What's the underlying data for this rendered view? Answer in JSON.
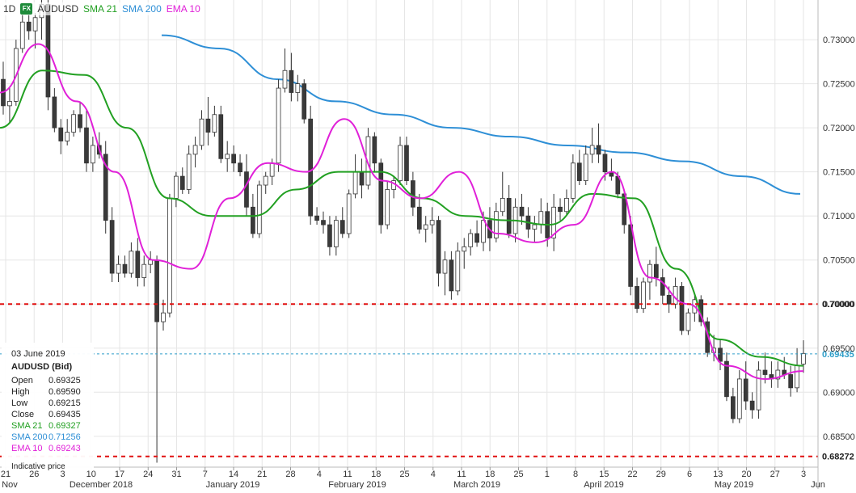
{
  "header": {
    "timeframe": "1D",
    "fx_badge": "FX",
    "symbol": "AUDUSD",
    "sma21_label": "SMA 21",
    "sma200_label": "SMA 200",
    "ema10_label": "EMA 10"
  },
  "colors": {
    "sma21": "#22a022",
    "sma200": "#2e8fd6",
    "ema10": "#e020d8",
    "candle_down": "#3a3a3a",
    "candle_up": "#ffffff",
    "level_line": "#e01010",
    "current_line": "#2e9ec9"
  },
  "info_panel": {
    "date": "03 June 2019",
    "instrument": "AUDUSD (Bid)",
    "rows": [
      {
        "label": "Open",
        "value": "0.69325"
      },
      {
        "label": "High",
        "value": "0.69590"
      },
      {
        "label": "Low",
        "value": "0.69215"
      },
      {
        "label": "Close",
        "value": "0.69435"
      },
      {
        "label": "SMA 21",
        "value": "0.69327"
      },
      {
        "label": "SMA 200",
        "value": "0.71256"
      },
      {
        "label": "EMA 10",
        "value": "0.69243"
      }
    ],
    "note": "Indicative price"
  },
  "chart_data": {
    "type": "candlestick",
    "timeframe": "1D",
    "instrument": "AUDUSD",
    "y_ticks": [
      "0.73000",
      "0.72500",
      "0.72000",
      "0.71500",
      "0.71000",
      "0.70500",
      "0.70000",
      "0.69500",
      "0.69000",
      "0.68500"
    ],
    "ylim": [
      0.6815,
      0.7345
    ],
    "x_tick_days": [
      "21",
      "26",
      "3",
      "10",
      "17",
      "24",
      "31",
      "7",
      "14",
      "21",
      "28",
      "4",
      "11",
      "18",
      "25",
      "4",
      "11",
      "18",
      "25",
      "1",
      "8",
      "15",
      "22",
      "29",
      "6",
      "13",
      "20",
      "27",
      "3"
    ],
    "x_month_labels": [
      "Nov",
      "December 2018",
      "January 2019",
      "February 2019",
      "March 2019",
      "April 2019",
      "May 2019",
      "Jun"
    ],
    "horizontal_levels": [
      {
        "value": 0.7,
        "label": "0.70000",
        "style": "dashed-red"
      },
      {
        "value": 0.68272,
        "label": "0.68272",
        "style": "dashed-red"
      }
    ],
    "current_price": {
      "value": 0.69435,
      "label": "0.69435"
    },
    "candles": [
      [
        0.7255,
        0.7275,
        0.7215,
        0.7225
      ],
      [
        0.7225,
        0.7245,
        0.7205,
        0.723
      ],
      [
        0.723,
        0.73,
        0.7225,
        0.729
      ],
      [
        0.729,
        0.734,
        0.7285,
        0.732
      ],
      [
        0.732,
        0.7335,
        0.73,
        0.731
      ],
      [
        0.731,
        0.733,
        0.729,
        0.7325
      ],
      [
        0.7325,
        0.735,
        0.73,
        0.734
      ],
      [
        0.734,
        0.7345,
        0.722,
        0.7235
      ],
      [
        0.7235,
        0.7245,
        0.7195,
        0.72
      ],
      [
        0.72,
        0.721,
        0.717,
        0.7185
      ],
      [
        0.7185,
        0.721,
        0.718,
        0.7195
      ],
      [
        0.7195,
        0.722,
        0.719,
        0.7215
      ],
      [
        0.7215,
        0.723,
        0.7195,
        0.72
      ],
      [
        0.72,
        0.722,
        0.715,
        0.716
      ],
      [
        0.716,
        0.719,
        0.715,
        0.718
      ],
      [
        0.718,
        0.7195,
        0.7165,
        0.717
      ],
      [
        0.717,
        0.7185,
        0.708,
        0.7095
      ],
      [
        0.7095,
        0.711,
        0.7025,
        0.7035
      ],
      [
        0.7035,
        0.7055,
        0.7025,
        0.7045
      ],
      [
        0.7045,
        0.7055,
        0.703,
        0.7035
      ],
      [
        0.7035,
        0.707,
        0.703,
        0.706
      ],
      [
        0.706,
        0.7075,
        0.702,
        0.703
      ],
      [
        0.703,
        0.7055,
        0.702,
        0.7045
      ],
      [
        0.7045,
        0.706,
        0.7035,
        0.705
      ],
      [
        0.705,
        0.7055,
        0.682,
        0.698
      ],
      [
        0.698,
        0.7005,
        0.697,
        0.699
      ],
      [
        0.699,
        0.7125,
        0.6985,
        0.712
      ],
      [
        0.712,
        0.715,
        0.711,
        0.7145
      ],
      [
        0.7145,
        0.7155,
        0.7125,
        0.713
      ],
      [
        0.713,
        0.718,
        0.7125,
        0.717
      ],
      [
        0.717,
        0.719,
        0.7155,
        0.718
      ],
      [
        0.718,
        0.722,
        0.7175,
        0.721
      ],
      [
        0.721,
        0.7235,
        0.718,
        0.7195
      ],
      [
        0.7195,
        0.7225,
        0.719,
        0.7215
      ],
      [
        0.7215,
        0.7225,
        0.716,
        0.7165
      ],
      [
        0.7165,
        0.7185,
        0.715,
        0.717
      ],
      [
        0.717,
        0.718,
        0.715,
        0.716
      ],
      [
        0.716,
        0.717,
        0.7145,
        0.715
      ],
      [
        0.715,
        0.717,
        0.71,
        0.711
      ],
      [
        0.711,
        0.7125,
        0.7075,
        0.708
      ],
      [
        0.708,
        0.714,
        0.7075,
        0.7135
      ],
      [
        0.7135,
        0.715,
        0.7125,
        0.7145
      ],
      [
        0.7145,
        0.7165,
        0.7135,
        0.716
      ],
      [
        0.716,
        0.7255,
        0.715,
        0.7245
      ],
      [
        0.7245,
        0.729,
        0.724,
        0.7265
      ],
      [
        0.7265,
        0.7285,
        0.723,
        0.724
      ],
      [
        0.724,
        0.726,
        0.723,
        0.725
      ],
      [
        0.725,
        0.7255,
        0.7205,
        0.721
      ],
      [
        0.721,
        0.7225,
        0.709,
        0.71
      ],
      [
        0.71,
        0.711,
        0.709,
        0.7095
      ],
      [
        0.7095,
        0.7105,
        0.708,
        0.709
      ],
      [
        0.709,
        0.71,
        0.7055,
        0.7065
      ],
      [
        0.7065,
        0.71,
        0.7055,
        0.7095
      ],
      [
        0.7095,
        0.711,
        0.7075,
        0.708
      ],
      [
        0.708,
        0.713,
        0.7075,
        0.7125
      ],
      [
        0.7125,
        0.717,
        0.712,
        0.715
      ],
      [
        0.715,
        0.7165,
        0.712,
        0.7135
      ],
      [
        0.7135,
        0.72,
        0.713,
        0.719
      ],
      [
        0.719,
        0.7195,
        0.715,
        0.716
      ],
      [
        0.716,
        0.7165,
        0.708,
        0.709
      ],
      [
        0.709,
        0.714,
        0.7085,
        0.713
      ],
      [
        0.713,
        0.7145,
        0.712,
        0.714
      ],
      [
        0.714,
        0.719,
        0.7135,
        0.718
      ],
      [
        0.718,
        0.719,
        0.7135,
        0.714
      ],
      [
        0.714,
        0.715,
        0.71,
        0.711
      ],
      [
        0.711,
        0.7125,
        0.708,
        0.7085
      ],
      [
        0.7085,
        0.71,
        0.707,
        0.709
      ],
      [
        0.709,
        0.711,
        0.708,
        0.7095
      ],
      [
        0.7095,
        0.71,
        0.702,
        0.7035
      ],
      [
        0.7035,
        0.706,
        0.701,
        0.705
      ],
      [
        0.705,
        0.706,
        0.7005,
        0.7015
      ],
      [
        0.7015,
        0.707,
        0.701,
        0.706
      ],
      [
        0.706,
        0.7075,
        0.704,
        0.7065
      ],
      [
        0.7065,
        0.7085,
        0.7055,
        0.708
      ],
      [
        0.708,
        0.7095,
        0.7065,
        0.707
      ],
      [
        0.707,
        0.7105,
        0.706,
        0.7095
      ],
      [
        0.7095,
        0.711,
        0.706,
        0.7075
      ],
      [
        0.7075,
        0.7115,
        0.707,
        0.7105
      ],
      [
        0.7105,
        0.715,
        0.71,
        0.712
      ],
      [
        0.712,
        0.7135,
        0.7075,
        0.708
      ],
      [
        0.708,
        0.712,
        0.707,
        0.711
      ],
      [
        0.711,
        0.7125,
        0.709,
        0.71
      ],
      [
        0.71,
        0.711,
        0.7075,
        0.7085
      ],
      [
        0.7085,
        0.71,
        0.707,
        0.709
      ],
      [
        0.709,
        0.712,
        0.708,
        0.7105
      ],
      [
        0.7105,
        0.7115,
        0.7065,
        0.7075
      ],
      [
        0.7075,
        0.7125,
        0.706,
        0.711
      ],
      [
        0.711,
        0.712,
        0.7095,
        0.7105
      ],
      [
        0.7105,
        0.713,
        0.71,
        0.712
      ],
      [
        0.712,
        0.717,
        0.7115,
        0.716
      ],
      [
        0.716,
        0.7175,
        0.7135,
        0.714
      ],
      [
        0.714,
        0.718,
        0.7135,
        0.717
      ],
      [
        0.717,
        0.72,
        0.716,
        0.718
      ],
      [
        0.718,
        0.7205,
        0.716,
        0.717
      ],
      [
        0.717,
        0.7175,
        0.714,
        0.715
      ],
      [
        0.715,
        0.7165,
        0.714,
        0.7145
      ],
      [
        0.7145,
        0.715,
        0.712,
        0.7125
      ],
      [
        0.7125,
        0.713,
        0.708,
        0.709
      ],
      [
        0.709,
        0.71,
        0.701,
        0.702
      ],
      [
        0.702,
        0.703,
        0.699,
        0.6995
      ],
      [
        0.6995,
        0.703,
        0.699,
        0.7025
      ],
      [
        0.7025,
        0.705,
        0.7005,
        0.7045
      ],
      [
        0.7045,
        0.7065,
        0.702,
        0.703
      ],
      [
        0.703,
        0.704,
        0.7,
        0.701
      ],
      [
        0.701,
        0.702,
        0.699,
        0.7
      ],
      [
        0.7,
        0.703,
        0.6995,
        0.702
      ],
      [
        0.702,
        0.7025,
        0.6965,
        0.697
      ],
      [
        0.697,
        0.6995,
        0.6965,
        0.699
      ],
      [
        0.699,
        0.701,
        0.698,
        0.7005
      ],
      [
        0.7005,
        0.701,
        0.6975,
        0.698
      ],
      [
        0.698,
        0.6985,
        0.694,
        0.6945
      ],
      [
        0.6945,
        0.6965,
        0.6935,
        0.695
      ],
      [
        0.695,
        0.696,
        0.6925,
        0.6935
      ],
      [
        0.6935,
        0.6945,
        0.689,
        0.6895
      ],
      [
        0.6895,
        0.6905,
        0.6865,
        0.687
      ],
      [
        0.687,
        0.6925,
        0.6865,
        0.6915
      ],
      [
        0.6915,
        0.6935,
        0.688,
        0.689
      ],
      [
        0.689,
        0.69,
        0.687,
        0.688
      ],
      [
        0.688,
        0.6935,
        0.687,
        0.6925
      ],
      [
        0.6925,
        0.6945,
        0.691,
        0.692
      ],
      [
        0.692,
        0.6935,
        0.6905,
        0.6915
      ],
      [
        0.6915,
        0.6935,
        0.6905,
        0.6925
      ],
      [
        0.6925,
        0.694,
        0.6915,
        0.692
      ],
      [
        0.692,
        0.693,
        0.6895,
        0.6905
      ],
      [
        0.6905,
        0.695,
        0.69,
        0.693
      ],
      [
        0.6932,
        0.6959,
        0.6922,
        0.6944
      ]
    ],
    "series": [
      {
        "name": "SMA 200",
        "values": [
          0.7305,
          0.729,
          0.7255,
          0.723,
          0.7215,
          0.72,
          0.719,
          0.718,
          0.7172,
          0.7162,
          0.7145,
          0.7125
        ]
      },
      {
        "name": "SMA 21",
        "values": [
          0.72,
          0.7265,
          0.726,
          0.72,
          0.712,
          0.71,
          0.71,
          0.713,
          0.715,
          0.715,
          0.712,
          0.71,
          0.7095,
          0.709,
          0.7125,
          0.712,
          0.704,
          0.696,
          0.694,
          0.693
        ]
      },
      {
        "name": "EMA 10",
        "values": [
          0.724,
          0.7295,
          0.723,
          0.715,
          0.705,
          0.704,
          0.712,
          0.716,
          0.715,
          0.721,
          0.714,
          0.712,
          0.715,
          0.708,
          0.707,
          0.709,
          0.715,
          0.703,
          0.7,
          0.693,
          0.6915,
          0.6924
        ]
      }
    ]
  }
}
